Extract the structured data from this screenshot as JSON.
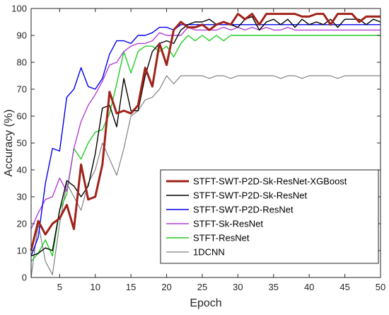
{
  "chart_data": {
    "type": "line",
    "xlabel": "Epoch",
    "ylabel": "Accuracy (%)",
    "xlim": [
      1,
      50
    ],
    "ylim": [
      0,
      100
    ],
    "xticks": [
      5,
      10,
      15,
      20,
      25,
      30,
      35,
      40,
      45,
      50
    ],
    "yticks": [
      0,
      10,
      20,
      30,
      40,
      50,
      60,
      70,
      80,
      90,
      100
    ],
    "grid": false,
    "legend_position": "bottom-right",
    "x": [
      1,
      2,
      3,
      4,
      5,
      6,
      7,
      8,
      9,
      10,
      11,
      12,
      13,
      14,
      15,
      16,
      17,
      18,
      19,
      20,
      21,
      22,
      23,
      24,
      25,
      26,
      27,
      28,
      29,
      30,
      31,
      32,
      33,
      34,
      35,
      36,
      37,
      38,
      39,
      40,
      41,
      42,
      43,
      44,
      45,
      46,
      47,
      48,
      49,
      50
    ],
    "series": [
      {
        "name": "STFT-SWT-P2D-Sk-ResNet-XGBoost",
        "color": "#a0221a",
        "width": 3,
        "values": [
          10,
          21,
          16,
          20,
          22,
          27,
          18,
          42,
          29,
          30,
          42,
          69,
          61,
          62,
          61,
          64,
          78,
          71,
          87,
          79,
          92,
          95,
          93,
          93,
          94,
          92,
          94,
          95,
          94,
          98,
          96,
          98,
          94,
          98,
          98,
          98,
          98,
          98,
          97,
          97,
          98,
          98,
          94,
          98,
          98,
          98,
          95,
          97,
          97,
          97
        ]
      },
      {
        "name": "STFT-SWT-P2D-Sk-ResNet",
        "color": "#000000",
        "width": 1.4,
        "values": [
          8,
          9,
          11,
          10,
          25,
          36,
          34,
          30,
          34,
          46,
          63,
          64,
          56,
          74,
          62,
          62,
          75,
          84,
          87,
          88,
          87,
          92,
          94,
          95,
          95,
          96,
          94,
          95,
          94,
          93,
          96,
          97,
          92,
          95,
          96,
          94,
          96,
          93,
          96,
          94,
          95,
          94,
          96,
          93,
          96,
          96,
          96,
          94,
          96,
          95
        ]
      },
      {
        "name": "STFT-SWT-P2D-ResNet",
        "color": "#0000ee",
        "width": 1.4,
        "values": [
          8,
          15,
          35,
          48,
          47,
          67,
          70,
          78,
          71,
          70,
          74,
          83,
          88,
          88,
          87,
          90,
          90,
          91,
          93,
          93,
          92,
          94,
          94,
          94,
          94,
          94,
          94,
          94,
          94,
          94,
          94,
          94,
          94,
          94,
          94,
          94,
          94,
          94,
          94,
          94,
          94,
          94,
          94,
          94,
          94,
          94,
          94,
          94,
          94,
          94
        ]
      },
      {
        "name": "STFT-Sk-ResNet",
        "color": "#b23fd6",
        "width": 1.4,
        "values": [
          18,
          24,
          29,
          30,
          37,
          32,
          48,
          58,
          64,
          68,
          73,
          79,
          80,
          84,
          86,
          87,
          87,
          88,
          91,
          90,
          90,
          90,
          93,
          92,
          92,
          92,
          92,
          93,
          92,
          93,
          92,
          93,
          92,
          93,
          92,
          92,
          93,
          92,
          92,
          92,
          92,
          92,
          92,
          92,
          92,
          92,
          92,
          92,
          92,
          92
        ]
      },
      {
        "name": "STFT-ResNet",
        "color": "#22cc22",
        "width": 1.4,
        "values": [
          6,
          9,
          14,
          8,
          25,
          31,
          48,
          44,
          50,
          54,
          55,
          61,
          72,
          84,
          76,
          84,
          86,
          86,
          84,
          86,
          82,
          87,
          90,
          88,
          90,
          88,
          90,
          88,
          90,
          90,
          90,
          90,
          90,
          90,
          90,
          90,
          90,
          90,
          90,
          90,
          90,
          90,
          90,
          90,
          90,
          90,
          90,
          90,
          90,
          90
        ]
      },
      {
        "name": "1DCNN",
        "color": "#808080",
        "width": 1.2,
        "values": [
          0,
          20,
          6,
          1,
          20,
          35,
          30,
          25,
          35,
          40,
          50,
          44,
          38,
          48,
          60,
          62,
          66,
          67,
          70,
          75,
          72,
          75,
          75,
          75,
          75,
          74,
          75,
          75,
          74,
          75,
          75,
          75,
          75,
          75,
          75,
          74,
          75,
          75,
          74,
          75,
          75,
          75,
          75,
          74,
          75,
          75,
          75,
          75,
          75,
          75
        ]
      }
    ]
  }
}
